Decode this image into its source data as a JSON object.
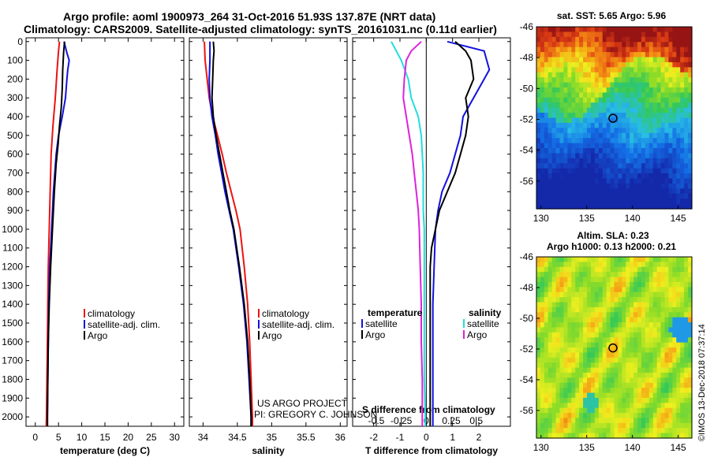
{
  "header": {
    "line1": "Argo profile: aoml 1900973_264 31-Oct-2016 51.93S 137.87E (NRT data)",
    "line2": "Climatology: CARS2009. Satellite-adjusted climatology: synTS_20161031.nc (0.11d earlier)"
  },
  "credits": {
    "project": "US ARGO PROJECT",
    "pi": "PI: GREGORY C. JOHNSON",
    "imos": "©IMOS 13-Dec-2018 07:37:14"
  },
  "colors": {
    "climatology": "#ee1111",
    "satellite": "#1111dd",
    "argo": "#000000",
    "t_satellite": "#1111dd",
    "t_argo": "#000000",
    "s_satellite": "#22dddd",
    "s_argo": "#dd22dd"
  },
  "chart_data": [
    {
      "type": "line",
      "id": "temperature",
      "xlabel": "temperature (deg C)",
      "ylabel": "",
      "xlim": [
        -2,
        32
      ],
      "ylim": [
        2050,
        -20
      ],
      "x_ticks": [
        "0",
        "5",
        "10",
        "15",
        "20",
        "25",
        "30"
      ],
      "x_tick_values": [
        0,
        5,
        10,
        15,
        20,
        25,
        30
      ],
      "y_ticks": [
        "0",
        "100",
        "200",
        "300",
        "400",
        "500",
        "600",
        "700",
        "800",
        "900",
        "1000",
        "1100",
        "1200",
        "1300",
        "1400",
        "1500",
        "1600",
        "1700",
        "1800",
        "1900",
        "2000"
      ],
      "y_tick_values": [
        0,
        100,
        200,
        300,
        400,
        500,
        600,
        700,
        800,
        900,
        1000,
        1100,
        1200,
        1300,
        1400,
        1500,
        1600,
        1700,
        1800,
        1900,
        2000
      ],
      "legend": [
        "climatology",
        "satellite-adj. clim.",
        "Argo"
      ],
      "legend_position": "center-right",
      "series": [
        {
          "name": "climatology",
          "color_key": "climatology",
          "points": [
            [
              5.2,
              0
            ],
            [
              5.0,
              50
            ],
            [
              4.7,
              150
            ],
            [
              4.3,
              300
            ],
            [
              3.8,
              450
            ],
            [
              3.4,
              600
            ],
            [
              3.2,
              800
            ],
            [
              3.0,
              1000
            ],
            [
              2.8,
              1200
            ],
            [
              2.7,
              1400
            ],
            [
              2.6,
              1600
            ],
            [
              2.5,
              1800
            ],
            [
              2.4,
              2000
            ],
            [
              2.35,
              2050
            ]
          ]
        },
        {
          "name": "satellite-adj. clim.",
          "color_key": "satellite",
          "points": [
            [
              6.2,
              0
            ],
            [
              6.8,
              60
            ],
            [
              7.3,
              100
            ],
            [
              7.0,
              150
            ],
            [
              6.8,
              200
            ],
            [
              6.5,
              300
            ],
            [
              5.8,
              400
            ],
            [
              5.0,
              500
            ],
            [
              4.5,
              600
            ],
            [
              3.9,
              800
            ],
            [
              3.5,
              1000
            ],
            [
              3.1,
              1200
            ],
            [
              2.9,
              1400
            ],
            [
              2.8,
              1600
            ],
            [
              2.7,
              1800
            ],
            [
              2.6,
              2000
            ],
            [
              2.6,
              2050
            ]
          ]
        },
        {
          "name": "Argo",
          "color_key": "argo",
          "points": [
            [
              6.3,
              0
            ],
            [
              6.1,
              60
            ],
            [
              5.9,
              150
            ],
            [
              5.8,
              250
            ],
            [
              5.6,
              350
            ],
            [
              5.2,
              450
            ],
            [
              4.9,
              550
            ],
            [
              4.5,
              650
            ],
            [
              4.1,
              800
            ],
            [
              3.7,
              1000
            ],
            [
              3.3,
              1200
            ],
            [
              3.0,
              1400
            ],
            [
              2.8,
              1600
            ],
            [
              2.7,
              1800
            ],
            [
              2.6,
              2000
            ],
            [
              2.6,
              2050
            ]
          ]
        }
      ]
    },
    {
      "type": "line",
      "id": "salinity",
      "xlabel": "salinity",
      "ylabel": "",
      "xlim": [
        33.8,
        36.1
      ],
      "ylim": [
        2050,
        -20
      ],
      "x_ticks": [
        "34",
        "34.5",
        "35",
        "35.5",
        "36"
      ],
      "x_tick_values": [
        34,
        34.5,
        35,
        35.5,
        36
      ],
      "legend": [
        "climatology",
        "satellite-adj. clim.",
        "Argo"
      ],
      "legend_position": "bottom-right",
      "series": [
        {
          "name": "climatology",
          "color_key": "climatology",
          "points": [
            [
              34.02,
              0
            ],
            [
              34.03,
              100
            ],
            [
              34.06,
              200
            ],
            [
              34.09,
              300
            ],
            [
              34.14,
              400
            ],
            [
              34.21,
              500
            ],
            [
              34.28,
              600
            ],
            [
              34.34,
              700
            ],
            [
              34.41,
              800
            ],
            [
              34.48,
              900
            ],
            [
              34.54,
              1000
            ],
            [
              34.6,
              1200
            ],
            [
              34.65,
              1400
            ],
            [
              34.68,
              1600
            ],
            [
              34.7,
              1800
            ],
            [
              34.72,
              2000
            ],
            [
              34.72,
              2050
            ]
          ]
        },
        {
          "name": "satellite-adj. clim.",
          "color_key": "satellite",
          "points": [
            [
              34.1,
              0
            ],
            [
              34.1,
              100
            ],
            [
              34.09,
              200
            ],
            [
              34.1,
              300
            ],
            [
              34.13,
              400
            ],
            [
              34.18,
              500
            ],
            [
              34.22,
              600
            ],
            [
              34.27,
              700
            ],
            [
              34.32,
              800
            ],
            [
              34.38,
              900
            ],
            [
              34.44,
              1000
            ],
            [
              34.52,
              1200
            ],
            [
              34.59,
              1400
            ],
            [
              34.64,
              1600
            ],
            [
              34.67,
              1800
            ],
            [
              34.7,
              2000
            ],
            [
              34.7,
              2050
            ]
          ]
        },
        {
          "name": "Argo",
          "color_key": "argo",
          "points": [
            [
              34.15,
              0
            ],
            [
              34.16,
              50
            ],
            [
              34.15,
              100
            ],
            [
              34.14,
              200
            ],
            [
              34.13,
              300
            ],
            [
              34.15,
              400
            ],
            [
              34.19,
              500
            ],
            [
              34.24,
              600
            ],
            [
              34.29,
              700
            ],
            [
              34.34,
              800
            ],
            [
              34.39,
              900
            ],
            [
              34.45,
              1000
            ],
            [
              34.53,
              1200
            ],
            [
              34.6,
              1400
            ],
            [
              34.65,
              1600
            ],
            [
              34.68,
              1800
            ],
            [
              34.7,
              2000
            ],
            [
              34.7,
              2050
            ]
          ]
        }
      ]
    },
    {
      "type": "line",
      "id": "difference",
      "xlabel": "T difference from climatology",
      "title_bottom": "S difference from climatology",
      "xlim": [
        -2.8,
        3.2
      ],
      "ylim": [
        2050,
        -20
      ],
      "x_ticks": [
        "-2",
        "-1",
        "0",
        "1",
        "2"
      ],
      "x_tick_values": [
        -2,
        -1,
        0,
        1,
        2
      ],
      "s_ticks": [
        "-0.5",
        "-0.25",
        "0",
        "0.25",
        "0.5"
      ],
      "s_tick_values": [
        -0.5,
        -0.25,
        0,
        0.25,
        0.5
      ],
      "legend_temperature_title": "temperature",
      "legend_salinity_title": "salinity",
      "legend_temperature": [
        "satellite",
        "Argo"
      ],
      "legend_salinity": [
        "satellite",
        "Argo"
      ],
      "series": [
        {
          "name": "T satellite",
          "color_key": "t_satellite",
          "points": [
            [
              0.8,
              0
            ],
            [
              2.2,
              50
            ],
            [
              2.3,
              100
            ],
            [
              2.4,
              150
            ],
            [
              2.2,
              200
            ],
            [
              1.8,
              300
            ],
            [
              1.4,
              400
            ],
            [
              1.3,
              500
            ],
            [
              1.1,
              600
            ],
            [
              0.9,
              700
            ],
            [
              0.6,
              800
            ],
            [
              0.45,
              900
            ],
            [
              0.35,
              1000
            ],
            [
              0.3,
              1200
            ],
            [
              0.25,
              1400
            ],
            [
              0.25,
              1600
            ],
            [
              0.25,
              1800
            ],
            [
              0.25,
              2000
            ],
            [
              0.25,
              2050
            ]
          ]
        },
        {
          "name": "T Argo",
          "color_key": "t_argo",
          "points": [
            [
              1.1,
              0
            ],
            [
              1.5,
              50
            ],
            [
              1.7,
              100
            ],
            [
              1.8,
              200
            ],
            [
              1.5,
              300
            ],
            [
              1.6,
              400
            ],
            [
              1.5,
              500
            ],
            [
              1.3,
              600
            ],
            [
              1.1,
              700
            ],
            [
              0.8,
              800
            ],
            [
              0.5,
              900
            ],
            [
              0.35,
              1000
            ],
            [
              0.2,
              1100
            ],
            [
              0.15,
              1200
            ],
            [
              0.15,
              1400
            ],
            [
              0.15,
              1600
            ],
            [
              0.15,
              1800
            ],
            [
              0.15,
              2000
            ],
            [
              0.15,
              2050
            ]
          ]
        },
        {
          "name": "S satellite",
          "color_key": "s_satellite",
          "points": [
            [
              -0.35,
              0
            ],
            [
              -0.25,
              100
            ],
            [
              -0.18,
              200
            ],
            [
              -0.15,
              300
            ],
            [
              -0.08,
              400
            ],
            [
              -0.05,
              500
            ],
            [
              -0.04,
              600
            ],
            [
              -0.03,
              700
            ],
            [
              -0.03,
              800
            ],
            [
              -0.03,
              900
            ],
            [
              -0.02,
              1000
            ],
            [
              -0.02,
              1200
            ],
            [
              -0.02,
              1400
            ],
            [
              -0.02,
              1600
            ],
            [
              -0.02,
              1800
            ],
            [
              -0.01,
              2000
            ],
            [
              -0.01,
              2050
            ]
          ]
        },
        {
          "name": "S Argo",
          "color_key": "s_argo",
          "points": [
            [
              -0.05,
              0
            ],
            [
              -0.15,
              50
            ],
            [
              -0.2,
              100
            ],
            [
              -0.22,
              200
            ],
            [
              -0.23,
              300
            ],
            [
              -0.2,
              400
            ],
            [
              -0.17,
              500
            ],
            [
              -0.14,
              600
            ],
            [
              -0.12,
              700
            ],
            [
              -0.1,
              800
            ],
            [
              -0.08,
              900
            ],
            [
              -0.07,
              1000
            ],
            [
              -0.06,
              1200
            ],
            [
              -0.05,
              1400
            ],
            [
              -0.05,
              1600
            ],
            [
              -0.04,
              1800
            ],
            [
              -0.04,
              2000
            ],
            [
              -0.04,
              2050
            ]
          ]
        }
      ]
    },
    {
      "type": "heatmap",
      "id": "sst_map",
      "title": "sat. SST: 5.65 Argo: 5.96",
      "xlim": [
        129.5,
        146.5
      ],
      "ylim": [
        -57.8,
        -46
      ],
      "x_ticks": [
        "130",
        "135",
        "140",
        "145"
      ],
      "x_tick_values": [
        130,
        135,
        140,
        145
      ],
      "y_ticks": [
        "-46",
        "-48",
        "-50",
        "-52",
        "-54",
        "-56"
      ],
      "y_tick_values": [
        -46,
        -48,
        -50,
        -52,
        -54,
        -56
      ],
      "marker": {
        "lon": 137.87,
        "lat": -51.93
      }
    },
    {
      "type": "heatmap",
      "id": "sla_map",
      "title_line1": "Altim. SLA: 0.23",
      "title_line2": "Argo h1000: 0.13 h2000: 0.21",
      "xlim": [
        129.5,
        146.5
      ],
      "ylim": [
        -57.8,
        -46
      ],
      "x_ticks": [
        "130",
        "135",
        "140",
        "145"
      ],
      "x_tick_values": [
        130,
        135,
        140,
        145
      ],
      "y_ticks": [
        "-46",
        "-48",
        "-50",
        "-52",
        "-54",
        "-56"
      ],
      "y_tick_values": [
        -46,
        -48,
        -50,
        -52,
        -54,
        -56
      ],
      "marker": {
        "lon": 137.87,
        "lat": -51.93
      }
    }
  ]
}
